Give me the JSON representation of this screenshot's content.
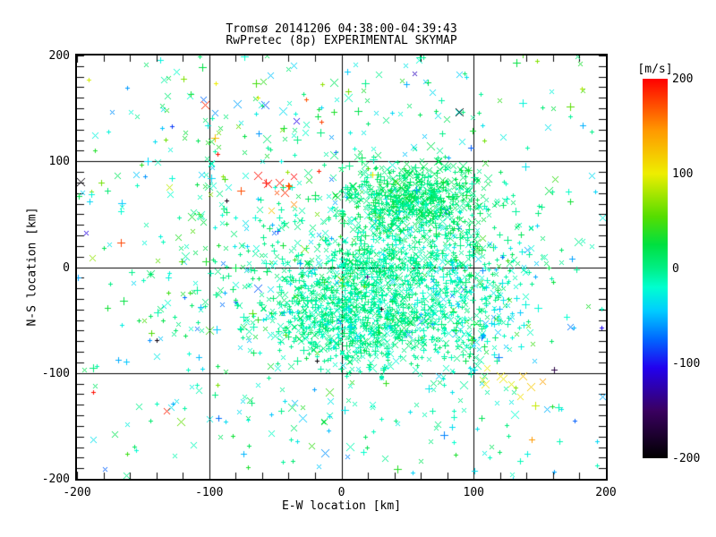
{
  "header": {
    "title_line1": "Tromsø 20141206 04:38:00-04:39:43",
    "title_line2": "RwPretec (8p) EXPERIMENTAL SKYMAP"
  },
  "chart_data": {
    "type": "scatter",
    "title": "Tromsø 20141206 04:38:00-04:39:43",
    "subtitle": "RwPretec (8p) EXPERIMENTAL SKYMAP",
    "xlabel": "E-W location [km]",
    "ylabel": "N-S location [km]",
    "xlim": [
      -200,
      200
    ],
    "ylim": [
      -200,
      200
    ],
    "x_major_ticks": [
      -200,
      -100,
      0,
      100,
      200
    ],
    "y_major_ticks": [
      -200,
      -100,
      0,
      100,
      200
    ],
    "x_minor_step": 20,
    "y_minor_step": 10,
    "grid_lines": [
      -100,
      0,
      100
    ],
    "grid_on": true,
    "axis_color": "#000000",
    "background_color": "#ffffff",
    "marker_shapes": [
      "plus",
      "x"
    ],
    "colorbar": {
      "label": "[m/s]",
      "min": -200,
      "max": 200,
      "ticks": [
        200,
        100,
        0,
        -100,
        -200
      ],
      "stops": [
        [
          -200,
          "#000000"
        ],
        [
          -150,
          "#3a0060"
        ],
        [
          -105,
          "#2200ee"
        ],
        [
          -75,
          "#0066ff"
        ],
        [
          -45,
          "#00ccff"
        ],
        [
          -20,
          "#00ffd0"
        ],
        [
          0,
          "#00ef86"
        ],
        [
          25,
          "#00e040"
        ],
        [
          55,
          "#55dd00"
        ],
        [
          100,
          "#eeee00"
        ],
        [
          145,
          "#ff9900"
        ],
        [
          200,
          "#ff0000"
        ]
      ]
    },
    "clusters": [
      {
        "name": "upper-dense-lobe",
        "dist": "gauss",
        "count": 430,
        "cx": 58,
        "cy": 68,
        "sx": 24,
        "sy": 15,
        "v_mean": 10,
        "v_sd": 10,
        "big_prob": 0.25,
        "seed": 11
      },
      {
        "name": "upper-broad",
        "dist": "gauss",
        "count": 420,
        "cx": 40,
        "cy": 40,
        "sx": 40,
        "sy": 26,
        "v_mean": 0,
        "v_sd": 16,
        "big_prob": 0.15,
        "seed": 22
      },
      {
        "name": "mid-band",
        "dist": "gauss",
        "count": 330,
        "cx": 25,
        "cy": 0,
        "sx": 55,
        "sy": 16,
        "v_mean": -4,
        "v_sd": 13,
        "big_prob": 0.12,
        "seed": 33
      },
      {
        "name": "lower-core",
        "dist": "gauss",
        "count": 980,
        "cx": 15,
        "cy": -48,
        "sx": 38,
        "sy": 24,
        "v_mean": -4,
        "v_sd": 12,
        "big_prob": 0.12,
        "seed": 44
      },
      {
        "name": "east-lobe",
        "dist": "gauss",
        "count": 300,
        "cx": 92,
        "cy": -25,
        "sx": 30,
        "sy": 42,
        "v_mean": -12,
        "v_sd": 24,
        "big_prob": 0.18,
        "seed": 55
      },
      {
        "name": "west-mid-scatter",
        "dist": "gauss",
        "count": 150,
        "cx": -85,
        "cy": 25,
        "sx": 50,
        "sy": 48,
        "v_mean": 0,
        "v_sd": 40,
        "big_prob": 0.2,
        "seed": 66
      },
      {
        "name": "south-sparse",
        "dist": "gauss",
        "count": 90,
        "cx": 0,
        "cy": -140,
        "sx": 90,
        "sy": 35,
        "v_mean": -8,
        "v_sd": 25,
        "big_prob": 0.15,
        "seed": 77
      },
      {
        "name": "north-sparse",
        "dist": "gauss",
        "count": 110,
        "cx": -20,
        "cy": 150,
        "sx": 100,
        "sy": 30,
        "v_mean": -5,
        "v_sd": 35,
        "big_prob": 0.15,
        "seed": 88
      },
      {
        "name": "background",
        "dist": "uniform",
        "count": 260,
        "v_mean": -10,
        "v_sd": 35,
        "extreme_prob": 0.06,
        "big_prob": 0.15,
        "seed": 99
      },
      {
        "name": "red-patch-nw",
        "dist": "gauss",
        "count": 7,
        "cx": -52,
        "cy": 78,
        "sx": 14,
        "sy": 11,
        "v_mean": 180,
        "v_sd": 15,
        "big_prob": 0.9,
        "seed": 101
      },
      {
        "name": "yellow-patch-se",
        "dist": "gauss",
        "count": 6,
        "cx": 133,
        "cy": -112,
        "sx": 13,
        "sy": 9,
        "v_mean": 105,
        "v_sd": 15,
        "big_prob": 0.85,
        "seed": 102
      }
    ],
    "feature_points": [
      {
        "x": -197,
        "y": 81,
        "v": -195,
        "shape": "x",
        "size": 8
      },
      {
        "x": 89,
        "y": 147,
        "v": -195,
        "shape": "x",
        "size": 8
      },
      {
        "x": 91,
        "y": 119,
        "v": -30,
        "shape": "x",
        "size": 6
      },
      {
        "x": 122,
        "y": 123,
        "v": -28,
        "shape": "x",
        "size": 7
      },
      {
        "x": 182,
        "y": 169,
        "v": 80,
        "shape": "plus",
        "size": 5
      },
      {
        "x": -34,
        "y": 138,
        "v": -105,
        "shape": "x",
        "size": 6
      },
      {
        "x": -63,
        "y": 87,
        "v": 195,
        "shape": "x",
        "size": 8
      },
      {
        "x": -47,
        "y": 80,
        "v": 190,
        "shape": "x",
        "size": 8
      },
      {
        "x": -43,
        "y": 71,
        "v": 185,
        "shape": "x",
        "size": 8
      },
      {
        "x": -36,
        "y": 60,
        "v": 150,
        "shape": "x",
        "size": 7
      },
      {
        "x": -94,
        "y": 107,
        "v": 195,
        "shape": "plus",
        "size": 4
      },
      {
        "x": -17,
        "y": 91,
        "v": 190,
        "shape": "plus",
        "size": 4
      },
      {
        "x": -87,
        "y": 63,
        "v": -190,
        "shape": "plus",
        "size": 5
      },
      {
        "x": -95,
        "y": 174,
        "v": 100,
        "shape": "plus",
        "size": 5
      },
      {
        "x": -63,
        "y": 160,
        "v": 95,
        "shape": "plus",
        "size": 4
      },
      {
        "x": -132,
        "y": -136,
        "v": 190,
        "shape": "x",
        "size": 7
      },
      {
        "x": -188,
        "y": -118,
        "v": 195,
        "shape": "plus",
        "size": 4
      },
      {
        "x": -140,
        "y": -69,
        "v": -190,
        "shape": "plus",
        "size": 5
      },
      {
        "x": -129,
        "y": -132,
        "v": -35,
        "shape": "x",
        "size": 6
      },
      {
        "x": 161,
        "y": -97,
        "v": -165,
        "shape": "plus",
        "size": 6
      },
      {
        "x": 120,
        "y": -103,
        "v": 105,
        "shape": "x",
        "size": 8
      },
      {
        "x": 128,
        "y": -110,
        "v": 95,
        "shape": "x",
        "size": 7
      },
      {
        "x": 143,
        "y": -113,
        "v": 120,
        "shape": "x",
        "size": 8
      },
      {
        "x": 135,
        "y": -122,
        "v": 108,
        "shape": "x",
        "size": 7
      },
      {
        "x": 152,
        "y": -108,
        "v": 140,
        "shape": "x",
        "size": 7
      },
      {
        "x": 110,
        "y": -95,
        "v": 100,
        "shape": "x",
        "size": 6
      },
      {
        "x": 30,
        "y": -39,
        "v": -195,
        "shape": "plus",
        "size": 5
      },
      {
        "x": 19,
        "y": -9,
        "v": -140,
        "shape": "plus",
        "size": 5
      },
      {
        "x": 55,
        "y": 183,
        "v": -120,
        "shape": "x",
        "size": 5
      },
      {
        "x": -107,
        "y": 199,
        "v": 10,
        "shape": "plus",
        "size": 5
      }
    ]
  }
}
